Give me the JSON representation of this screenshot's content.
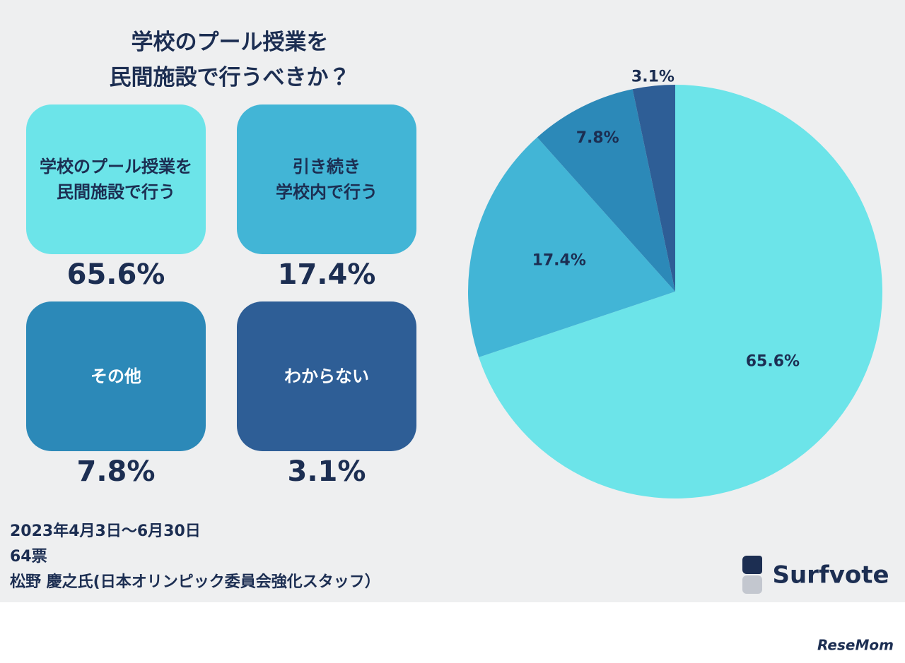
{
  "chart_data": {
    "type": "pie",
    "title": [
      "学校のプール授業を",
      "民間施設で行うべきか？"
    ],
    "categories": [
      [
        "学校のプール授業を",
        "民間施設で行う"
      ],
      [
        "引き続き",
        "学校内で行う"
      ],
      [
        "その他"
      ],
      [
        "わからない"
      ]
    ],
    "values": [
      65.6,
      17.4,
      7.8,
      3.1
    ],
    "value_labels": [
      "65.6%",
      "17.4%",
      "7.8%",
      "3.1%"
    ],
    "colors": [
      "#6ce4e9",
      "#42b5d6",
      "#2c89b8",
      "#2e5e96"
    ],
    "text_colors": [
      "#1c2e52",
      "#1c2e52",
      "#ffffff",
      "#ffffff"
    ],
    "footer": [
      "2023年4月3日～6月30日",
      "64票",
      "松野 慶之氏(日本オリンピック委員会強化スタッフ）"
    ]
  },
  "logo": "Surfvote",
  "watermark": "ReseMom"
}
